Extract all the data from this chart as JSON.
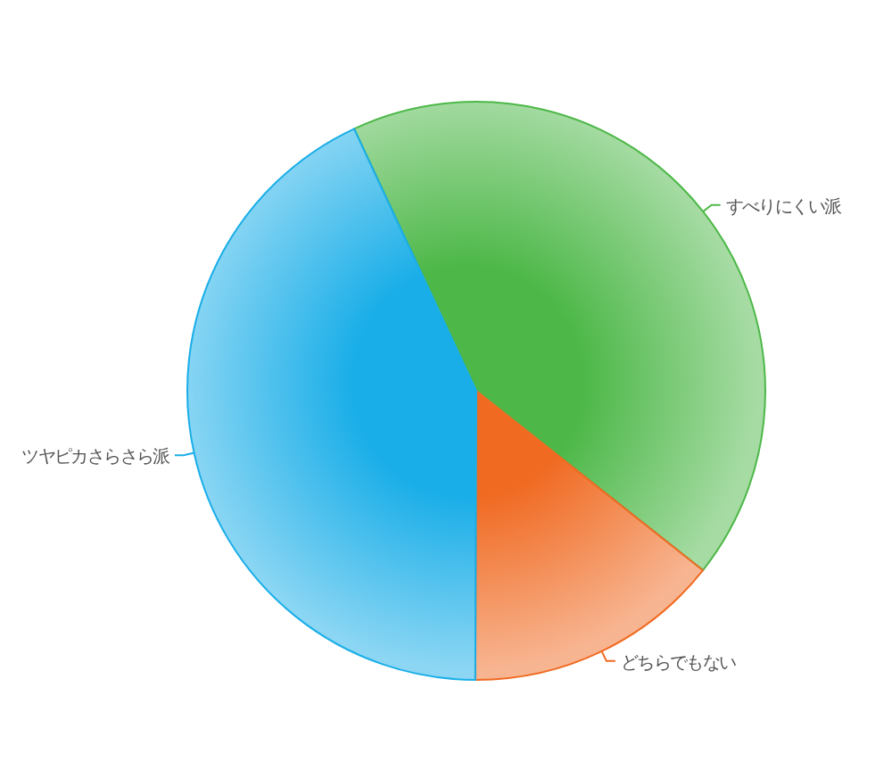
{
  "chart_data": {
    "type": "pie",
    "categories": [
      "すべりにくい派",
      "どちらでもない",
      "ツヤピカさらさら派"
    ],
    "values": [
      42.6,
      14.4,
      43.0
    ],
    "colors": [
      "#4db848",
      "#f06a22",
      "#1aaee8"
    ],
    "legend": false
  }
}
